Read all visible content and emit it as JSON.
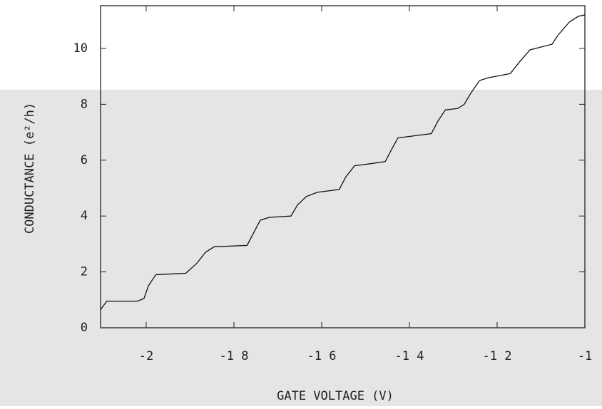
{
  "chart_data": {
    "type": "line",
    "x_label": "GATE VOLTAGE   (V)",
    "y_label": "CONDUCTANCE  (e²/h)",
    "x": [
      -2.104,
      -2.09,
      -2.02,
      -2.005,
      -1.995,
      -1.978,
      -1.91,
      -1.885,
      -1.865,
      -1.845,
      -1.77,
      -1.755,
      -1.74,
      -1.72,
      -1.67,
      -1.655,
      -1.635,
      -1.61,
      -1.56,
      -1.545,
      -1.525,
      -1.5,
      -1.455,
      -1.44,
      -1.426,
      -1.4,
      -1.35,
      -1.335,
      -1.318,
      -1.29,
      -1.275,
      -1.26,
      -1.24,
      -1.22,
      -1.17,
      -1.15,
      -1.125,
      -1.1,
      -1.075,
      -1.06,
      -1.035,
      -1.015,
      -1.0
    ],
    "series": [
      {
        "color": "#111111",
        "values": [
          0.65,
          0.95,
          0.95,
          1.05,
          1.5,
          1.9,
          1.95,
          2.3,
          2.7,
          2.9,
          2.95,
          3.4,
          3.85,
          3.95,
          4.0,
          4.4,
          4.7,
          4.85,
          4.95,
          5.4,
          5.8,
          5.85,
          5.95,
          6.4,
          6.8,
          6.85,
          6.95,
          7.4,
          7.8,
          7.85,
          8.0,
          8.4,
          8.85,
          8.95,
          9.1,
          9.5,
          9.95,
          10.05,
          10.15,
          10.5,
          10.95,
          11.15,
          11.2
        ]
      }
    ],
    "xlim": [
      -2.104,
      -1.0
    ],
    "xticks": [
      {
        "value": -2,
        "label": "-2"
      },
      {
        "value": -1.8,
        "label": "-1 8"
      },
      {
        "value": -1.6,
        "label": "-1 6"
      },
      {
        "value": -1.4,
        "label": "-1 4"
      },
      {
        "value": -1.2,
        "label": "-1 2"
      },
      {
        "value": -1,
        "label": "-1"
      }
    ],
    "ylim": [
      0,
      11.53
    ],
    "yticks": [
      0,
      2,
      4,
      6,
      8,
      10
    ]
  }
}
